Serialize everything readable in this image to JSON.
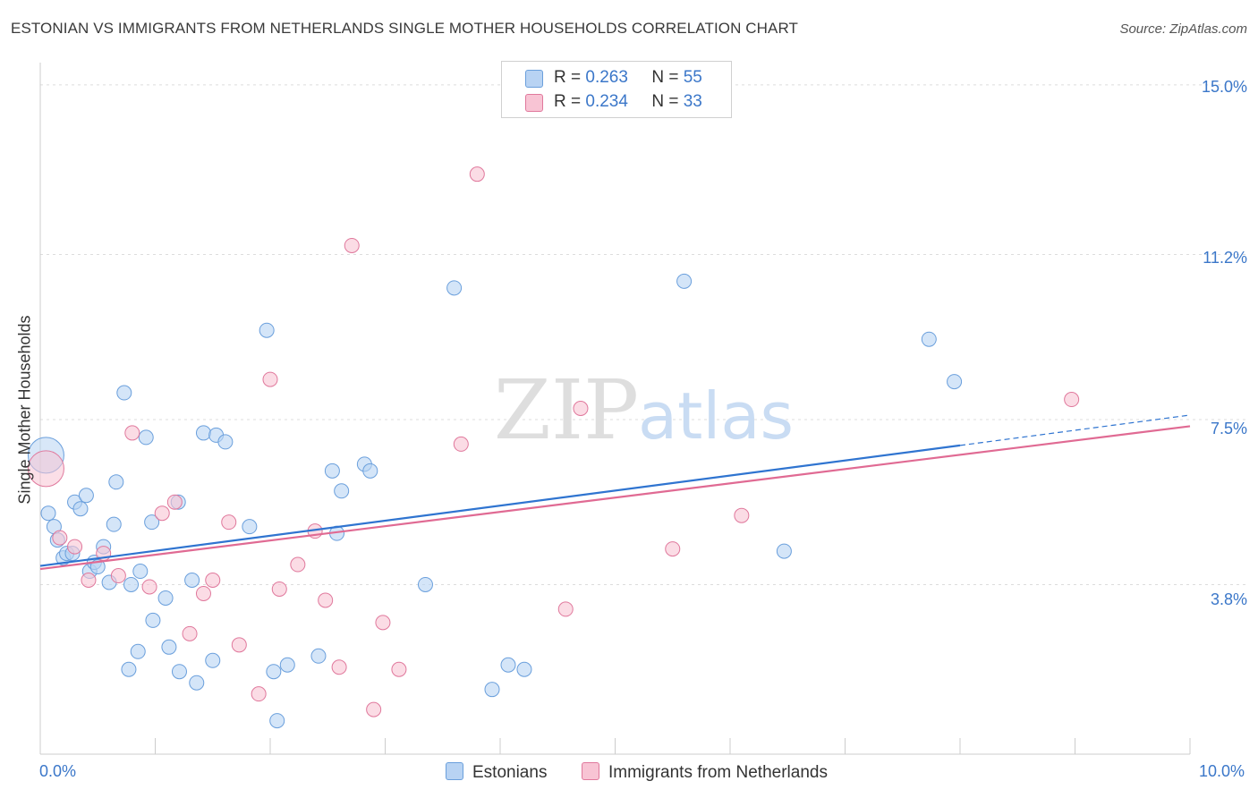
{
  "header": {
    "title": "ESTONIAN VS IMMIGRANTS FROM NETHERLANDS SINGLE MOTHER HOUSEHOLDS CORRELATION CHART",
    "source": "Source: ZipAtlas.com"
  },
  "watermark": {
    "zip": "ZIP",
    "atlas": "atlas"
  },
  "legend": {
    "r_label": "R =",
    "n_label": "N =",
    "rows": [
      {
        "r": "0.263",
        "n": "55",
        "color": "#a8c8f0"
      },
      {
        "r": "0.234",
        "n": "33",
        "color": "#f5b8cb"
      }
    ]
  },
  "chart_data": {
    "type": "scatter",
    "title": "ESTONIAN VS IMMIGRANTS FROM NETHERLANDS SINGLE MOTHER HOUSEHOLDS CORRELATION CHART",
    "xlabel": "",
    "ylabel": "Single Mother Households",
    "xlim": [
      0,
      10
    ],
    "ylim": [
      0,
      15.5
    ],
    "x_tick_labels": [
      "0.0%",
      "10.0%"
    ],
    "y_tick_labels": [
      "3.8%",
      "7.5%",
      "11.2%",
      "15.0%"
    ],
    "y_ticks": [
      3.8,
      7.5,
      11.2,
      15.0
    ],
    "grid": true,
    "legend_position": "top-center",
    "series": [
      {
        "name": "Estonians",
        "color": "#6a9fdc",
        "fill": "#b8d3f3",
        "trend": {
          "x": [
            0,
            8.0
          ],
          "y": [
            4.22,
            6.92
          ],
          "dashed_to": [
            10,
            7.6
          ]
        },
        "points": [
          {
            "x": 0.05,
            "y": 6.7,
            "big": true
          },
          {
            "x": 0.07,
            "y": 5.4
          },
          {
            "x": 0.12,
            "y": 5.1
          },
          {
            "x": 0.15,
            "y": 4.8
          },
          {
            "x": 0.2,
            "y": 4.4
          },
          {
            "x": 0.23,
            "y": 4.5
          },
          {
            "x": 0.28,
            "y": 4.5
          },
          {
            "x": 0.3,
            "y": 5.65
          },
          {
            "x": 0.35,
            "y": 5.5
          },
          {
            "x": 0.4,
            "y": 5.8
          },
          {
            "x": 0.43,
            "y": 4.1
          },
          {
            "x": 0.47,
            "y": 4.3
          },
          {
            "x": 0.5,
            "y": 4.2
          },
          {
            "x": 0.55,
            "y": 4.65
          },
          {
            "x": 0.6,
            "y": 3.85
          },
          {
            "x": 0.64,
            "y": 5.15
          },
          {
            "x": 0.66,
            "y": 6.1
          },
          {
            "x": 0.73,
            "y": 8.1
          },
          {
            "x": 0.77,
            "y": 1.9
          },
          {
            "x": 0.79,
            "y": 3.8
          },
          {
            "x": 0.85,
            "y": 2.3
          },
          {
            "x": 0.87,
            "y": 4.1
          },
          {
            "x": 0.92,
            "y": 7.1
          },
          {
            "x": 0.97,
            "y": 5.2
          },
          {
            "x": 0.98,
            "y": 3.0
          },
          {
            "x": 1.09,
            "y": 3.5
          },
          {
            "x": 1.12,
            "y": 2.4
          },
          {
            "x": 1.2,
            "y": 5.65
          },
          {
            "x": 1.21,
            "y": 1.85
          },
          {
            "x": 1.32,
            "y": 3.9
          },
          {
            "x": 1.36,
            "y": 1.6
          },
          {
            "x": 1.42,
            "y": 7.2
          },
          {
            "x": 1.5,
            "y": 2.1
          },
          {
            "x": 1.53,
            "y": 7.15
          },
          {
            "x": 1.61,
            "y": 7.0
          },
          {
            "x": 1.82,
            "y": 5.1
          },
          {
            "x": 1.97,
            "y": 9.5
          },
          {
            "x": 2.03,
            "y": 1.85
          },
          {
            "x": 2.06,
            "y": 0.75
          },
          {
            "x": 2.15,
            "y": 2.0
          },
          {
            "x": 2.42,
            "y": 2.2
          },
          {
            "x": 2.54,
            "y": 6.35
          },
          {
            "x": 2.58,
            "y": 4.95
          },
          {
            "x": 2.62,
            "y": 5.9
          },
          {
            "x": 2.82,
            "y": 6.5
          },
          {
            "x": 2.87,
            "y": 6.35
          },
          {
            "x": 3.35,
            "y": 3.8
          },
          {
            "x": 3.6,
            "y": 10.45
          },
          {
            "x": 3.93,
            "y": 1.45
          },
          {
            "x": 4.07,
            "y": 2.0
          },
          {
            "x": 4.21,
            "y": 1.9
          },
          {
            "x": 5.6,
            "y": 10.6
          },
          {
            "x": 6.47,
            "y": 4.55
          },
          {
            "x": 7.73,
            "y": 9.3
          },
          {
            "x": 7.95,
            "y": 8.35
          }
        ]
      },
      {
        "name": "Immigrants from Netherlands",
        "color": "#e0789c",
        "fill": "#f8c4d4",
        "trend": {
          "x": [
            0,
            10
          ],
          "y": [
            4.15,
            7.35
          ]
        },
        "points": [
          {
            "x": 0.05,
            "y": 6.4,
            "big": true
          },
          {
            "x": 0.17,
            "y": 4.85
          },
          {
            "x": 0.3,
            "y": 4.65
          },
          {
            "x": 0.42,
            "y": 3.9
          },
          {
            "x": 0.55,
            "y": 4.5
          },
          {
            "x": 0.68,
            "y": 4.0
          },
          {
            "x": 0.8,
            "y": 7.2
          },
          {
            "x": 0.95,
            "y": 3.75
          },
          {
            "x": 1.06,
            "y": 5.4
          },
          {
            "x": 1.17,
            "y": 5.65
          },
          {
            "x": 1.3,
            "y": 2.7
          },
          {
            "x": 1.42,
            "y": 3.6
          },
          {
            "x": 1.5,
            "y": 3.9
          },
          {
            "x": 1.64,
            "y": 5.2
          },
          {
            "x": 1.73,
            "y": 2.45
          },
          {
            "x": 1.9,
            "y": 1.35
          },
          {
            "x": 2.0,
            "y": 8.4
          },
          {
            "x": 2.08,
            "y": 3.7
          },
          {
            "x": 2.24,
            "y": 4.25
          },
          {
            "x": 2.39,
            "y": 5.0
          },
          {
            "x": 2.48,
            "y": 3.45
          },
          {
            "x": 2.6,
            "y": 1.95
          },
          {
            "x": 2.71,
            "y": 11.4
          },
          {
            "x": 2.9,
            "y": 1.0
          },
          {
            "x": 2.98,
            "y": 2.95
          },
          {
            "x": 3.12,
            "y": 1.9
          },
          {
            "x": 3.66,
            "y": 6.95
          },
          {
            "x": 3.8,
            "y": 13.0
          },
          {
            "x": 4.57,
            "y": 3.25
          },
          {
            "x": 4.7,
            "y": 7.75
          },
          {
            "x": 5.5,
            "y": 4.6
          },
          {
            "x": 6.1,
            "y": 5.35
          },
          {
            "x": 8.97,
            "y": 7.95
          }
        ]
      }
    ]
  }
}
